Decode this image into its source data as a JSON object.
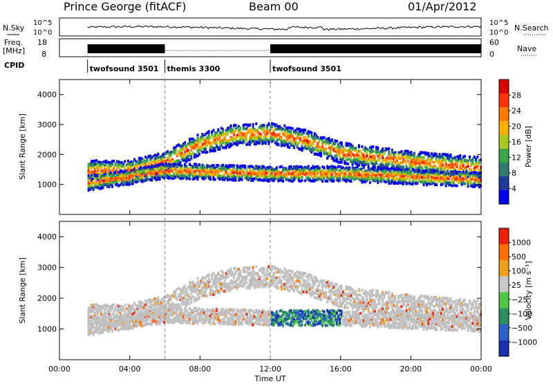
{
  "header": {
    "station": "Prince George (fitACF)",
    "beam": "Beam 00",
    "date": "01/Apr/2012"
  },
  "noise_panel": {
    "left_label": "N.Sky",
    "right_label": "N.Search",
    "left_ticks": [
      "10^5",
      "10^0"
    ],
    "right_ticks": [
      "10^5",
      "10^0"
    ]
  },
  "freq_panel": {
    "left_label_1": "Freq.",
    "left_label_2": "[MHz]",
    "left_ticks": [
      "18",
      "8"
    ],
    "right_label": "Nave",
    "right_ticks": [
      "60",
      "0"
    ]
  },
  "cpid": {
    "label": "CPID",
    "segments": [
      {
        "name": "twofsound 3501",
        "start_hour": 1.6,
        "end_hour": 6.0
      },
      {
        "name": "themis 3300",
        "start_hour": 6.0,
        "end_hour": 12.0
      },
      {
        "name": "twofsound 3501",
        "start_hour": 12.0,
        "end_hour": 24.0
      }
    ]
  },
  "x_axis": {
    "label": "Time UT",
    "ticks": [
      "00:00",
      "04:00",
      "08:00",
      "12:00",
      "16:00",
      "20:00",
      "00:00"
    ]
  },
  "power_panel": {
    "ylabel": "Slant Range [km]",
    "yticks": [
      "4000",
      "3000",
      "2000",
      "1000"
    ],
    "colorbar_label": "Power [dB]",
    "colorbar_ticks": [
      "28",
      "24",
      "20",
      "16",
      "12",
      "8",
      "4"
    ],
    "colors": [
      "#0000ee",
      "#1e3ca0",
      "#2e7d6e",
      "#3aa84a",
      "#a8c820",
      "#ffb000",
      "#ff7a00",
      "#ff3300",
      "#dd0000"
    ]
  },
  "velocity_panel": {
    "ylabel": "Slant Range [km]",
    "yticks": [
      "4000",
      "3000",
      "2000",
      "1000"
    ],
    "colorbar_label": "Velocity  [m s⁻¹]",
    "colorbar_ticks": [
      "1000",
      "500",
      "100",
      "25",
      "−25",
      "−100",
      "−500",
      "−1000"
    ],
    "colors": [
      "#1a30b0",
      "#2b64c8",
      "#2a9060",
      "#4cc840",
      "#c8c8c8",
      "#f0a020",
      "#ff7000",
      "#ee2000"
    ],
    "ground_scatter_color": "#c0c0c0"
  },
  "chart_data": {
    "type": "heatmap",
    "x_range_hours": [
      0,
      24
    ],
    "y_range_km": [
      0,
      4500
    ],
    "scatter_bands": [
      {
        "name": "main band",
        "start_hour": 1.6,
        "end_hour": 24.0,
        "center_km_at": [
          [
            1.6,
            1500
          ],
          [
            4,
            1500
          ],
          [
            6,
            1800
          ],
          [
            8,
            2400
          ],
          [
            10,
            2700
          ],
          [
            12,
            2750
          ],
          [
            14,
            2500
          ],
          [
            16,
            2100
          ],
          [
            20,
            1800
          ],
          [
            24,
            1600
          ]
        ]
      },
      {
        "name": "lower band",
        "start_hour": 1.6,
        "end_hour": 24.0,
        "center_km_at": [
          [
            1.6,
            1100
          ],
          [
            4,
            1300
          ],
          [
            6,
            1500
          ],
          [
            12,
            1400
          ],
          [
            16,
            1400
          ],
          [
            20,
            1300
          ],
          [
            24,
            1200
          ]
        ]
      }
    ],
    "power_db_range": [
      0,
      30
    ],
    "velocity_range": [
      -1000,
      1000
    ]
  }
}
